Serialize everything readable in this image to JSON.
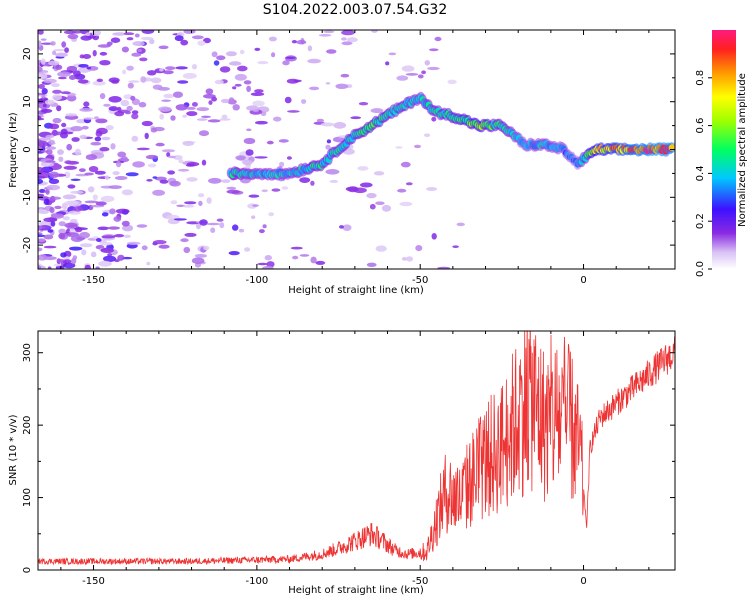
{
  "title": "S104.2022.003.07.54.G32",
  "chart_data": [
    {
      "type": "heatmap",
      "xlabel": "Height of straight line (km)",
      "ylabel": "Frequency (Hz)",
      "xlim": [
        -167,
        28
      ],
      "ylim": [
        -25,
        25
      ],
      "x_ticks": [
        -150,
        -100,
        -50,
        0
      ],
      "x_tick_labels": [
        "-150",
        "-100",
        "-50",
        "0"
      ],
      "y_ticks": [
        -20,
        -10,
        0,
        10,
        20
      ],
      "y_tick_labels": [
        "-20",
        "-10",
        "0",
        "10",
        "20"
      ],
      "colorbar": {
        "label": "Normalized spectral amplitude",
        "range": [
          0,
          1
        ],
        "ticks": [
          0.0,
          0.2,
          0.4,
          0.6,
          0.8
        ],
        "tick_labels": [
          "0.0",
          "0.2",
          "0.4",
          "0.6",
          "0.8"
        ]
      },
      "ridge": {
        "height_km": [
          -108,
          -100,
          -90,
          -80,
          -72,
          -65,
          -58,
          -50,
          -46,
          -40,
          -32,
          -25,
          -18,
          -12,
          -6,
          -2,
          4,
          12,
          20,
          27
        ],
        "frequency_hz": [
          -5,
          -5,
          -5,
          -3,
          2,
          5,
          8,
          11,
          8,
          7,
          5,
          5,
          1,
          1,
          0,
          -3,
          0,
          0,
          0,
          0
        ],
        "amplitude": [
          0.45,
          0.4,
          0.4,
          0.45,
          0.45,
          0.5,
          0.45,
          0.4,
          0.45,
          0.5,
          0.6,
          0.45,
          0.35,
          0.4,
          0.35,
          0.3,
          0.75,
          0.85,
          0.95,
          0.95
        ]
      }
    },
    {
      "type": "line",
      "xlabel": "Height of straight line (km)",
      "ylabel": "SNR (10 * v/v)",
      "xlim": [
        -167,
        28
      ],
      "ylim": [
        0,
        330
      ],
      "x_ticks": [
        -150,
        -100,
        -50,
        0
      ],
      "x_tick_labels": [
        "-150",
        "-100",
        "-50",
        "0"
      ],
      "y_ticks": [
        0,
        100,
        200,
        300
      ],
      "y_tick_labels": [
        "0",
        "100",
        "200",
        "300"
      ],
      "color": "#ee3333",
      "envelope": {
        "x": [
          -167,
          -120,
          -90,
          -80,
          -75,
          -70,
          -65,
          -62,
          -58,
          -54,
          -48,
          -45,
          -42,
          -38,
          -35,
          -30,
          -25,
          -20,
          -17,
          -15,
          -12,
          -8,
          -4,
          -1,
          1,
          2,
          5,
          10,
          15,
          20,
          25,
          28
        ],
        "y": [
          12,
          12,
          15,
          22,
          30,
          40,
          50,
          42,
          28,
          22,
          25,
          70,
          110,
          95,
          120,
          150,
          170,
          210,
          240,
          230,
          200,
          210,
          200,
          160,
          60,
          170,
          210,
          230,
          250,
          270,
          290,
          300
        ]
      }
    }
  ]
}
